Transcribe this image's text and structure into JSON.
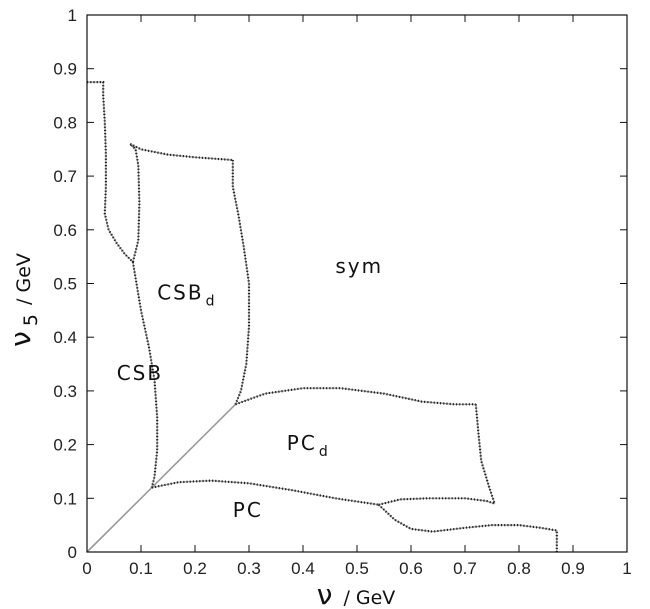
{
  "chart_data": {
    "type": "phase-diagram",
    "title": "",
    "xlabel": {
      "main": "ν",
      "unit": "/ GeV"
    },
    "ylabel": {
      "main": "ν",
      "sub": "5",
      "unit": "/ GeV"
    },
    "xlim": [
      0,
      1
    ],
    "ylim": [
      0,
      1
    ],
    "xticks": [
      "0",
      "0.1",
      "0.2",
      "0.3",
      "0.4",
      "0.5",
      "0.6",
      "0.7",
      "0.8",
      "0.9",
      "1"
    ],
    "yticks": [
      "0",
      "0.1",
      "0.2",
      "0.3",
      "0.4",
      "0.5",
      "0.6",
      "0.7",
      "0.8",
      "0.9",
      "1"
    ],
    "grid": false,
    "regions": [
      {
        "main": "CSB",
        "sub": "",
        "x": 0.055,
        "y": 0.32
      },
      {
        "main": "CSB",
        "sub": "d",
        "x": 0.13,
        "y": 0.47
      },
      {
        "main": "sym",
        "sub": "",
        "x": 0.46,
        "y": 0.52
      },
      {
        "main": "PC",
        "sub": "d",
        "x": 0.37,
        "y": 0.19
      },
      {
        "main": "PC",
        "sub": "",
        "x": 0.27,
        "y": 0.065
      }
    ],
    "boundaries": [
      {
        "name": "diagonal",
        "style": "solid-gray",
        "points": [
          [
            0.0,
            0.0
          ],
          [
            0.12,
            0.12
          ],
          [
            0.275,
            0.275
          ]
        ]
      },
      {
        "name": "outer-staircase",
        "style": "dotted",
        "points": [
          [
            0.0,
            0.875
          ],
          [
            0.03,
            0.875
          ],
          [
            0.03,
            0.85
          ],
          [
            0.033,
            0.8
          ],
          [
            0.035,
            0.74
          ],
          [
            0.035,
            0.68
          ],
          [
            0.033,
            0.63
          ],
          [
            0.04,
            0.6
          ],
          [
            0.055,
            0.575
          ],
          [
            0.07,
            0.555
          ],
          [
            0.085,
            0.54
          ]
        ]
      },
      {
        "name": "csb-loop",
        "style": "dotted",
        "points": [
          [
            0.085,
            0.54
          ],
          [
            0.095,
            0.58
          ],
          [
            0.097,
            0.65
          ],
          [
            0.095,
            0.72
          ],
          [
            0.09,
            0.75
          ],
          [
            0.08,
            0.76
          ],
          [
            0.085,
            0.755
          ]
        ]
      },
      {
        "name": "csb-csbd",
        "style": "dotted",
        "points": [
          [
            0.085,
            0.54
          ],
          [
            0.1,
            0.45
          ],
          [
            0.115,
            0.38
          ],
          [
            0.125,
            0.32
          ],
          [
            0.13,
            0.25
          ],
          [
            0.13,
            0.19
          ],
          [
            0.125,
            0.14
          ],
          [
            0.12,
            0.12
          ]
        ]
      },
      {
        "name": "csbd-top",
        "style": "dotted",
        "points": [
          [
            0.08,
            0.76
          ],
          [
            0.1,
            0.75
          ],
          [
            0.15,
            0.74
          ],
          [
            0.2,
            0.735
          ],
          [
            0.27,
            0.73
          ]
        ]
      },
      {
        "name": "csbd-right",
        "style": "dotted",
        "points": [
          [
            0.27,
            0.73
          ],
          [
            0.27,
            0.68
          ],
          [
            0.28,
            0.63
          ],
          [
            0.29,
            0.57
          ],
          [
            0.3,
            0.5
          ],
          [
            0.3,
            0.42
          ],
          [
            0.295,
            0.35
          ],
          [
            0.285,
            0.3
          ],
          [
            0.275,
            0.275
          ]
        ]
      },
      {
        "name": "pcd-top",
        "style": "dotted",
        "points": [
          [
            0.275,
            0.275
          ],
          [
            0.33,
            0.295
          ],
          [
            0.4,
            0.305
          ],
          [
            0.47,
            0.305
          ],
          [
            0.55,
            0.295
          ],
          [
            0.62,
            0.28
          ],
          [
            0.68,
            0.275
          ],
          [
            0.72,
            0.275
          ]
        ]
      },
      {
        "name": "pcd-right",
        "style": "dotted",
        "points": [
          [
            0.72,
            0.275
          ],
          [
            0.725,
            0.22
          ],
          [
            0.73,
            0.17
          ],
          [
            0.745,
            0.12
          ],
          [
            0.755,
            0.09
          ]
        ]
      },
      {
        "name": "pc-top",
        "style": "dotted",
        "points": [
          [
            0.12,
            0.12
          ],
          [
            0.17,
            0.13
          ],
          [
            0.23,
            0.133
          ],
          [
            0.3,
            0.128
          ],
          [
            0.38,
            0.115
          ],
          [
            0.46,
            0.1
          ],
          [
            0.54,
            0.088
          ]
        ]
      },
      {
        "name": "pc-pcd-right",
        "style": "dotted",
        "points": [
          [
            0.54,
            0.088
          ],
          [
            0.58,
            0.098
          ],
          [
            0.63,
            0.1
          ],
          [
            0.7,
            0.1
          ],
          [
            0.74,
            0.095
          ],
          [
            0.755,
            0.09
          ]
        ]
      },
      {
        "name": "pc-lower",
        "style": "dotted",
        "points": [
          [
            0.54,
            0.088
          ],
          [
            0.57,
            0.06
          ],
          [
            0.6,
            0.043
          ],
          [
            0.64,
            0.038
          ],
          [
            0.7,
            0.045
          ],
          [
            0.75,
            0.05
          ],
          [
            0.8,
            0.05
          ],
          [
            0.84,
            0.045
          ],
          [
            0.87,
            0.04
          ],
          [
            0.87,
            0.0
          ]
        ]
      }
    ]
  }
}
